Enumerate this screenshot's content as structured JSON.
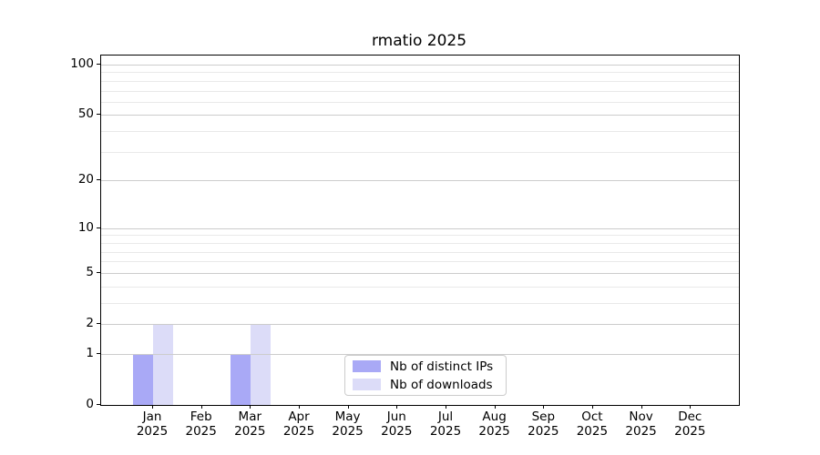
{
  "chart_data": {
    "type": "bar",
    "title": "rmatio 2025",
    "categories": [
      "Jan 2025",
      "Feb 2025",
      "Mar 2025",
      "Apr 2025",
      "May 2025",
      "Jun 2025",
      "Jul 2025",
      "Aug 2025",
      "Sep 2025",
      "Oct 2025",
      "Nov 2025",
      "Dec 2025"
    ],
    "series": [
      {
        "name": "Nb of distinct IPs",
        "color": "#a9a9f6",
        "values": [
          1,
          0,
          1,
          0,
          0,
          0,
          0,
          0,
          0,
          0,
          0,
          0
        ]
      },
      {
        "name": "Nb of downloads",
        "color": "#dcdcf8",
        "values": [
          2,
          0,
          2,
          0,
          0,
          0,
          0,
          0,
          0,
          0,
          0,
          0
        ]
      }
    ],
    "xlabel": "",
    "ylabel": "",
    "yscale": "log10(1+y)",
    "ylim": [
      0,
      113
    ],
    "y_major_ticks": [
      0,
      1,
      2,
      5,
      10,
      20,
      50,
      100
    ],
    "y_minor_ticks": [
      3,
      4,
      6,
      7,
      8,
      9,
      30,
      40,
      60,
      70,
      80,
      90
    ],
    "grid": true,
    "legend_position": "lower center"
  },
  "colors": {
    "background": "#ffffff",
    "axis": "#000000",
    "grid_major": "#cccccc",
    "grid_minor": "#e9e9e9",
    "bar_distinct_ips": "#a9a9f6",
    "bar_downloads": "#dcdcf8",
    "legend_border": "#cccccc"
  }
}
